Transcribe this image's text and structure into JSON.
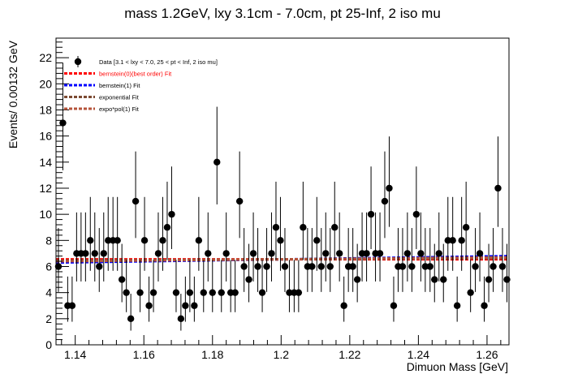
{
  "chart_data": {
    "type": "scatter",
    "title": "mass 1.2GeV, lxy 3.1cm - 7.0cm, pt 25-Inf, 2 iso mu",
    "xlabel": "Dimuon Mass [GeV]",
    "ylabel": "Events/ 0.00132 GeV",
    "xlim": [
      1.1344,
      1.2664
    ],
    "ylim": [
      0,
      23.5
    ],
    "x_ticks": [
      "1.14",
      "1.16",
      "1.18",
      "1.2",
      "1.22",
      "1.24",
      "1.26"
    ],
    "x_tick_values": [
      1.14,
      1.16,
      1.18,
      1.2,
      1.22,
      1.24,
      1.26
    ],
    "y_ticks": [
      "0",
      "2",
      "4",
      "6",
      "8",
      "10",
      "12",
      "14",
      "16",
      "18",
      "20",
      "22"
    ],
    "y_tick_values": [
      0,
      2,
      4,
      6,
      8,
      10,
      12,
      14,
      16,
      18,
      20,
      22
    ],
    "legend_position": "top-left",
    "legend": [
      {
        "label": "Data [3.1 < lxy < 7.0, 25 < pt < Inf, 2 iso mu]",
        "style": "marker",
        "color": "#000000",
        "text_color": "#000000"
      },
      {
        "label": "bernstein(0)(best order) Fit",
        "style": "dashed",
        "color": "#ff0000",
        "text_color": "#ff0000"
      },
      {
        "label": "bernstein(1) Fit",
        "style": "dashed",
        "color": "#0000ff",
        "text_color": "#000000"
      },
      {
        "label": "exponential Fit",
        "style": "dashed",
        "color": "#7b4a32",
        "text_color": "#000000"
      },
      {
        "label": "expo*pol(1) Fit",
        "style": "dashed",
        "color": "#b5533a",
        "text_color": "#000000"
      }
    ],
    "series": [
      {
        "name": "Data [3.1 < lxy < 7.0, 25 < pt < Inf, 2 iso mu]",
        "type": "points",
        "color": "#000000",
        "x": [
          1.1351,
          1.1364,
          1.1378,
          1.1391,
          1.1404,
          1.1417,
          1.143,
          1.1444,
          1.1457,
          1.147,
          1.1483,
          1.1496,
          1.151,
          1.1523,
          1.1536,
          1.1549,
          1.1562,
          1.1576,
          1.1589,
          1.1602,
          1.1615,
          1.1628,
          1.1642,
          1.1655,
          1.1668,
          1.1681,
          1.1694,
          1.1708,
          1.1721,
          1.1734,
          1.1747,
          1.176,
          1.1774,
          1.1787,
          1.18,
          1.1813,
          1.1826,
          1.184,
          1.1853,
          1.1866,
          1.1879,
          1.1892,
          1.1906,
          1.1919,
          1.1932,
          1.1945,
          1.1958,
          1.1972,
          1.1985,
          1.1998,
          1.2011,
          1.2024,
          1.2038,
          1.2051,
          1.2064,
          1.2077,
          1.209,
          1.2104,
          1.2117,
          1.213,
          1.2143,
          1.2156,
          1.217,
          1.2183,
          1.2196,
          1.2209,
          1.2222,
          1.2236,
          1.2249,
          1.2262,
          1.2275,
          1.2288,
          1.2302,
          1.2315,
          1.2328,
          1.2341,
          1.2354,
          1.2368,
          1.2381,
          1.2394,
          1.2407,
          1.242,
          1.2434,
          1.2447,
          1.246,
          1.2473,
          1.2486,
          1.25,
          1.2513,
          1.2526,
          1.2539,
          1.2552,
          1.2566,
          1.2579,
          1.2592,
          1.2605,
          1.2618,
          1.2632,
          1.2645,
          1.2658
        ],
        "values": [
          6,
          17,
          3,
          3,
          7,
          7,
          7,
          8,
          7,
          6,
          7,
          8,
          8,
          8,
          5,
          4,
          2,
          11,
          4,
          8,
          3,
          4,
          7,
          8,
          9,
          10,
          4,
          2,
          3,
          4,
          3,
          8,
          4,
          7,
          4,
          14,
          4,
          7,
          4,
          4,
          11,
          6,
          5,
          7,
          6,
          4,
          6,
          7,
          9,
          8,
          6,
          4,
          4,
          4,
          9,
          6,
          6,
          8,
          6,
          7,
          6,
          9,
          7,
          3,
          6,
          6,
          5,
          7,
          7,
          10,
          7,
          7,
          11,
          12,
          3,
          6,
          6,
          7,
          6,
          10,
          7,
          6,
          6,
          5,
          7,
          5,
          8,
          8,
          3,
          8,
          9,
          4,
          6,
          7,
          3,
          5,
          6,
          12,
          6,
          5
        ]
      },
      {
        "name": "bernstein(0)(best order) Fit",
        "type": "line",
        "style": "dashed",
        "color": "#ff0000",
        "x": [
          1.1344,
          1.2664
        ],
        "values": [
          6.55,
          6.55
        ]
      },
      {
        "name": "bernstein(1) Fit",
        "type": "line",
        "style": "dashed",
        "color": "#0000ff",
        "x": [
          1.1344,
          1.2664
        ],
        "values": [
          6.3,
          6.8
        ]
      },
      {
        "name": "exponential Fit",
        "type": "line",
        "style": "dashed",
        "color": "#7b4a32",
        "x": [
          1.1344,
          1.2664
        ],
        "values": [
          6.45,
          6.65
        ]
      },
      {
        "name": "expo*pol(1) Fit",
        "type": "line",
        "style": "dashed",
        "color": "#b5533a",
        "x": [
          1.1344,
          1.2664
        ],
        "values": [
          6.4,
          6.7
        ]
      }
    ]
  }
}
